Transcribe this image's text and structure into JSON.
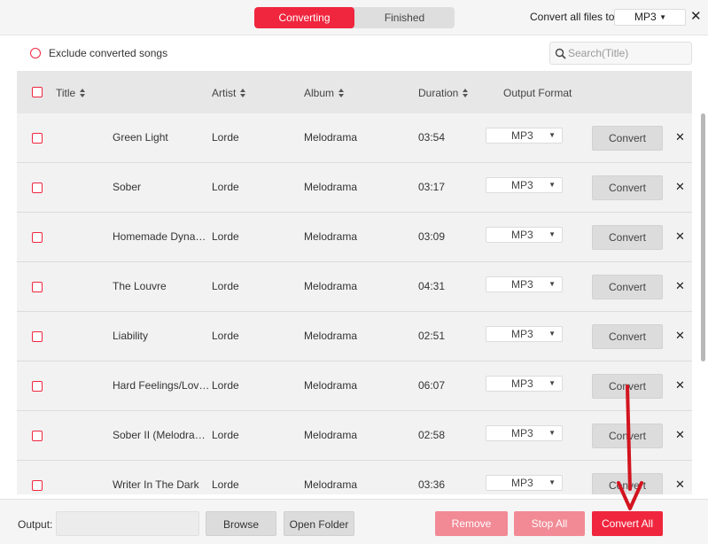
{
  "tabs": {
    "converting": "Converting",
    "finished": "Finished"
  },
  "topbar": {
    "convert_all_label": "Convert all files to:",
    "format": "MP3"
  },
  "filter": {
    "exclude_label": "Exclude converted songs",
    "search_placeholder": "Search(Title)"
  },
  "table": {
    "headers": {
      "title": "Title",
      "artist": "Artist",
      "album": "Album",
      "duration": "Duration",
      "output_format": "Output Format"
    },
    "convert_label": "Convert",
    "rows": [
      {
        "title": "Green Light",
        "artist": "Lorde",
        "album": "Melodrama",
        "duration": "03:54",
        "format": "MP3"
      },
      {
        "title": "Sober",
        "artist": "Lorde",
        "album": "Melodrama",
        "duration": "03:17",
        "format": "MP3"
      },
      {
        "title": "Homemade Dynam…",
        "artist": "Lorde",
        "album": "Melodrama",
        "duration": "03:09",
        "format": "MP3"
      },
      {
        "title": "The Louvre",
        "artist": "Lorde",
        "album": "Melodrama",
        "duration": "04:31",
        "format": "MP3"
      },
      {
        "title": "Liability",
        "artist": "Lorde",
        "album": "Melodrama",
        "duration": "02:51",
        "format": "MP3"
      },
      {
        "title": "Hard Feelings/Lov…",
        "artist": "Lorde",
        "album": "Melodrama",
        "duration": "06:07",
        "format": "MP3"
      },
      {
        "title": "Sober II (Melodrama)",
        "artist": "Lorde",
        "album": "Melodrama",
        "duration": "02:58",
        "format": "MP3"
      },
      {
        "title": "Writer In The Dark",
        "artist": "Lorde",
        "album": "Melodrama",
        "duration": "03:36",
        "format": "MP3"
      }
    ]
  },
  "footer": {
    "output_label": "Output:",
    "output_value": "",
    "browse": "Browse",
    "open_folder": "Open Folder",
    "remove": "Remove",
    "stop_all": "Stop All",
    "convert_all": "Convert All"
  },
  "colors": {
    "accent": "#f0263e",
    "accent_light": "#f28a96",
    "annotation_arrow": "#d3141f"
  }
}
